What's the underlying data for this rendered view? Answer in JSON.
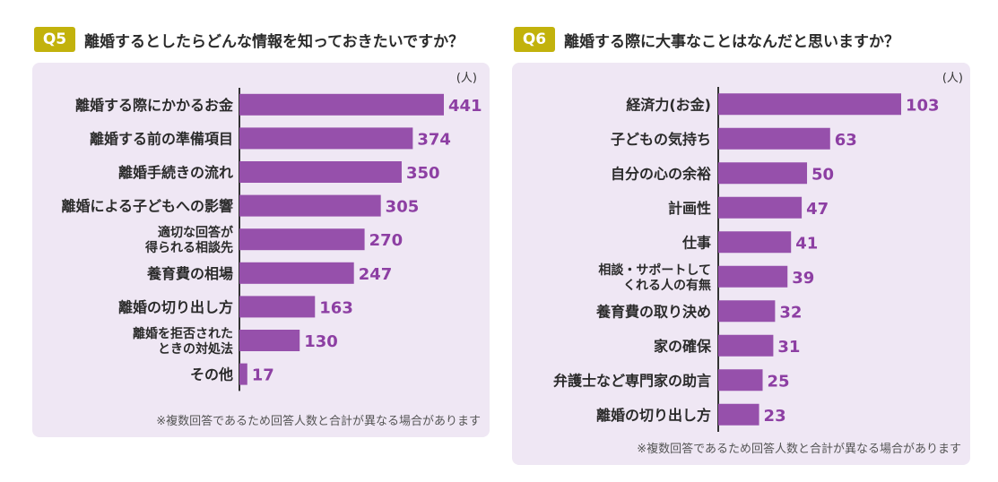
{
  "colors": {
    "bar": "#9650ab",
    "value": "#8d3fa3",
    "badge": "#c2b20c",
    "panel": "#efe7f4"
  },
  "chart_data": [
    {
      "type": "bar",
      "orientation": "horizontal",
      "badge": "Q5",
      "title": "離婚するとしたらどんな情報を知っておきたいですか？",
      "unit": "(人)",
      "note": "※複数回答であるため回答人数と合計が異なる場合があります",
      "categories": [
        [
          "離婚する際にかかるお金"
        ],
        [
          "離婚する前の準備項目"
        ],
        [
          "離婚手続きの流れ"
        ],
        [
          "離婚による子どもへの影響"
        ],
        [
          "適切な回答が",
          "得られる相談先"
        ],
        [
          "養育費の相場"
        ],
        [
          "離婚の切り出し方"
        ],
        [
          "離婚を拒否された",
          "ときの対処法"
        ],
        [
          "その他"
        ]
      ],
      "values": [
        441,
        374,
        350,
        305,
        270,
        247,
        163,
        130,
        17
      ],
      "xlim": [
        0,
        441
      ]
    },
    {
      "type": "bar",
      "orientation": "horizontal",
      "badge": "Q6",
      "title": "離婚する際に大事なことはなんだと思いますか？",
      "unit": "(人)",
      "note": "※複数回答であるため回答人数と合計が異なる場合があります",
      "categories": [
        [
          "経済力(お金)"
        ],
        [
          "子どもの気持ち"
        ],
        [
          "自分の心の余裕"
        ],
        [
          "計画性"
        ],
        [
          "仕事"
        ],
        [
          "相談・サポートして",
          "くれる人の有無"
        ],
        [
          "養育費の取り決め"
        ],
        [
          "家の確保"
        ],
        [
          "弁護士など専門家の助言"
        ],
        [
          "離婚の切り出し方"
        ]
      ],
      "values": [
        103,
        63,
        50,
        47,
        41,
        39,
        32,
        31,
        25,
        23
      ],
      "xlim": [
        0,
        103
      ]
    }
  ]
}
